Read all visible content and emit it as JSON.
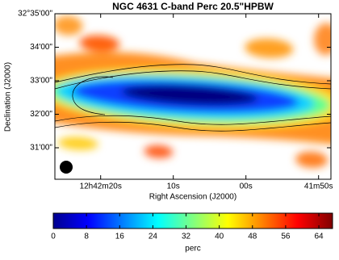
{
  "chart_data": {
    "type": "image",
    "title": "NGC 4631   C-band   Perc   20.5\"HPBW",
    "x_label": "Right Ascension (J2000)",
    "y_label": "Declination (J2000)",
    "xlim": [
      45746.3,
      45708.3
    ],
    "xticks": [
      {
        "value": 45740,
        "label": "12h42m20s"
      },
      {
        "value": 45730,
        "label": "10s"
      },
      {
        "value": 45720,
        "label": "00s"
      },
      {
        "value": 45710,
        "label": "41m50s"
      }
    ],
    "ylim": [
      117003.6,
      117300
    ],
    "yticks": [
      {
        "value": 117300,
        "label": "32°35'00\""
      },
      {
        "value": 117240,
        "label": "34'00\""
      },
      {
        "value": 117180,
        "label": "33'00\""
      },
      {
        "value": 117120,
        "label": "32'00\""
      },
      {
        "value": 117060,
        "label": "31'00\""
      }
    ],
    "colorbar": {
      "label": "perc",
      "clim": [
        0,
        67.3
      ],
      "ticks": [
        0,
        8,
        16,
        24,
        32,
        40,
        48,
        56,
        64
      ],
      "colormap": [
        "#00008f",
        "#0000ff",
        "#0080ff",
        "#00ffff",
        "#80ff80",
        "#ffff00",
        "#ff8000",
        "#ff0000",
        "#800000"
      ]
    }
  }
}
